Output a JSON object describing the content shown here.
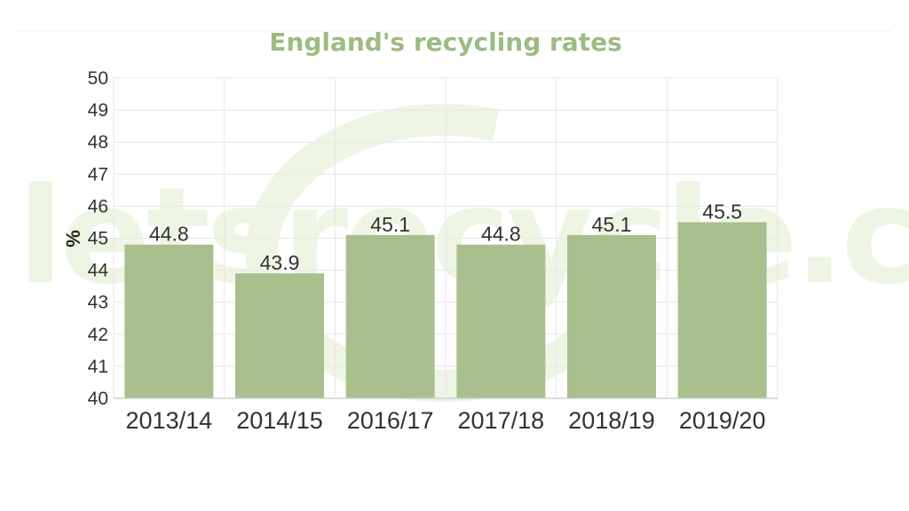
{
  "chart_data": {
    "type": "bar",
    "title": "England's recycling rates",
    "xlabel": "",
    "ylabel": "%",
    "categories": [
      "2013/14",
      "2014/15",
      "2016/17",
      "2017/18",
      "2018/19",
      "2019/20"
    ],
    "values": [
      44.8,
      43.9,
      45.1,
      44.8,
      45.1,
      45.5
    ],
    "data_labels": [
      "44.8",
      "43.9",
      "45.1",
      "44.8",
      "45.1",
      "45.5"
    ],
    "ylim": [
      40,
      50
    ],
    "yticks": [
      "40",
      "41",
      "42",
      "43",
      "44",
      "45",
      "46",
      "47",
      "48",
      "49",
      "50"
    ],
    "grid": true,
    "legend": "none"
  },
  "watermark": {
    "text": "letsrecycle.com"
  },
  "colors": {
    "bar": "#a9c08e",
    "title": "#9dbb83",
    "grid": "#e8e8e8",
    "axis": "#d0d0d0",
    "watermark": "#eef5e4"
  }
}
